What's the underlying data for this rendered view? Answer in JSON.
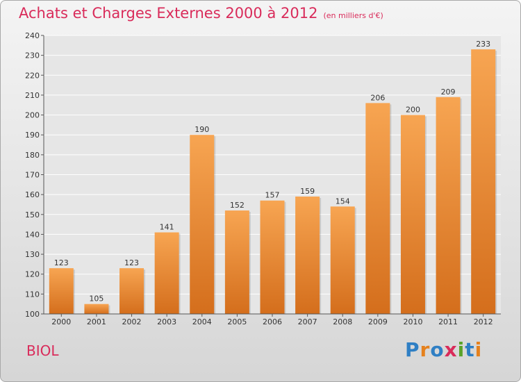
{
  "title": "Achats et Charges Externes 2000 à 2012",
  "subtitle": "(en milliers d'€)",
  "commune": "BIOL",
  "logo": {
    "text": "Proxiti",
    "letters": [
      {
        "ch": "P",
        "color": "#2f7fc4"
      },
      {
        "ch": "r",
        "color": "#e5811d"
      },
      {
        "ch": "o",
        "color": "#2f7fc4"
      },
      {
        "ch": "x",
        "color": "#d92b5a"
      },
      {
        "ch": "i",
        "color": "#5aa32a"
      },
      {
        "ch": "t",
        "color": "#2f7fc4"
      },
      {
        "ch": "i",
        "color": "#e5811d"
      }
    ]
  },
  "colors": {
    "title": "#d92b5a",
    "bar_top": "#f7a552",
    "bar_bottom": "#d46e1c"
  },
  "chart_data": {
    "type": "bar",
    "categories": [
      "2000",
      "2001",
      "2002",
      "2003",
      "2004",
      "2005",
      "2006",
      "2007",
      "2008",
      "2009",
      "2010",
      "2011",
      "2012"
    ],
    "values": [
      123,
      105,
      123,
      141,
      190,
      152,
      157,
      159,
      154,
      206,
      200,
      209,
      233
    ],
    "ylim": [
      100,
      240
    ],
    "yticks": [
      100,
      110,
      120,
      130,
      140,
      150,
      160,
      170,
      180,
      190,
      200,
      210,
      220,
      230,
      240
    ],
    "grid": true
  }
}
